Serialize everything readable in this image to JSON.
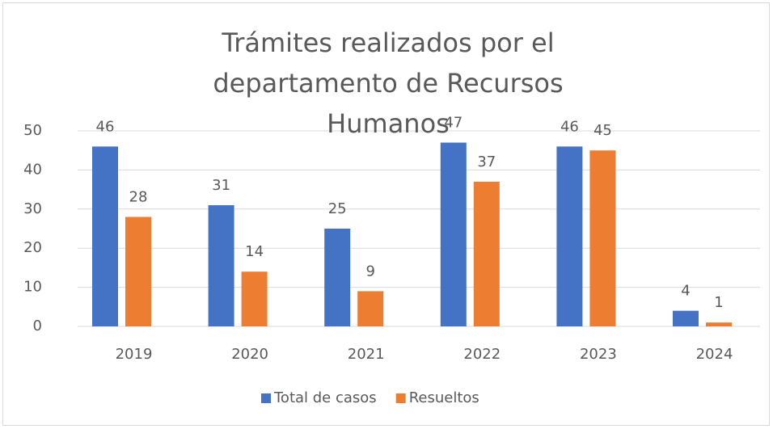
{
  "chart_data": {
    "type": "bar",
    "title": "Trámites realizados por el departamento de Recursos Humanos",
    "categories": [
      "2019",
      "2020",
      "2021",
      "2022",
      "2023",
      "2024"
    ],
    "series": [
      {
        "name": "Total de casos",
        "color": "#4472c4",
        "values": [
          46,
          31,
          25,
          47,
          46,
          4
        ]
      },
      {
        "name": "Resueltos",
        "color": "#ed7d31",
        "values": [
          28,
          14,
          9,
          37,
          45,
          1
        ]
      }
    ],
    "ylim": [
      0,
      50
    ],
    "yticks": [
      0,
      10,
      20,
      30,
      40,
      50
    ],
    "grid": true,
    "legend": "bottom"
  }
}
